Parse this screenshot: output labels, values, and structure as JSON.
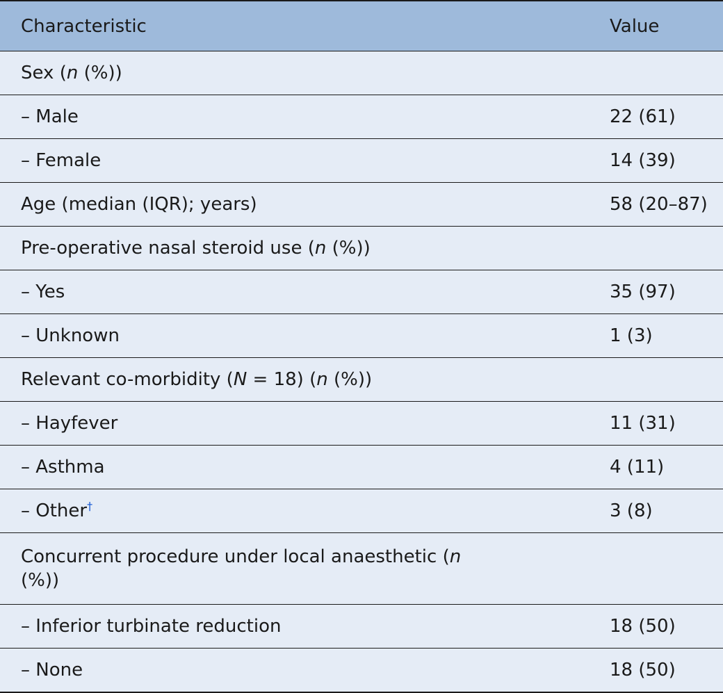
{
  "header": {
    "characteristic": "Characteristic",
    "value": "Value"
  },
  "rows": [
    {
      "label": "Sex (n (%))",
      "value": ""
    },
    {
      "label": "– Male",
      "value": "22 (61)"
    },
    {
      "label": "– Female",
      "value": "14 (39)"
    },
    {
      "label": "Age (median (IQR); years)",
      "value": "58 (20–87)"
    },
    {
      "label": "Pre-operative nasal steroid use (n (%))",
      "value": ""
    },
    {
      "label": "– Yes",
      "value": "35 (97)"
    },
    {
      "label": "– Unknown",
      "value": "1 (3)"
    },
    {
      "label": "Relevant co-morbidity (N = 18) (n (%))",
      "value": ""
    },
    {
      "label": "– Hayfever",
      "value": "11 (31)"
    },
    {
      "label": "– Asthma",
      "value": "4 (11)"
    },
    {
      "label": "– Other",
      "footnote_mark": "†",
      "value": "3 (8)"
    },
    {
      "label": "Concurrent procedure under local anaesthetic (n (%))",
      "value": ""
    },
    {
      "label": "– Inferior turbinate reduction",
      "value": "18 (50)"
    },
    {
      "label": "– None",
      "value": "18 (50)"
    }
  ]
}
